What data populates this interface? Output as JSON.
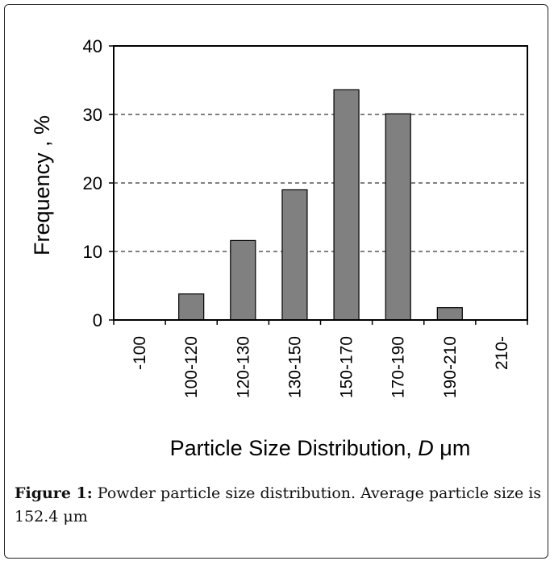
{
  "chart_data": {
    "type": "bar",
    "categories": [
      "-100",
      "100-120",
      "120-130",
      "130-150",
      "150-170",
      "170-190",
      "190-210",
      "210-"
    ],
    "values": [
      0,
      3.8,
      11.6,
      19.0,
      33.6,
      30.1,
      1.8,
      0
    ],
    "xlabel": "Particle Size Distribution, ",
    "xlabel_symbol": "D",
    "xlabel_unit": "μm",
    "ylabel": "Frequency , %",
    "ylim": [
      0,
      40
    ],
    "yticks": [
      "0",
      "10",
      "20",
      "30",
      "40"
    ],
    "grid": "horizontal dashed",
    "bar_color": "#808080",
    "legend": "none"
  },
  "caption": {
    "lead": "Figure 1:",
    "text": " Powder particle size distribution. Average particle size is 152.4 μm"
  }
}
